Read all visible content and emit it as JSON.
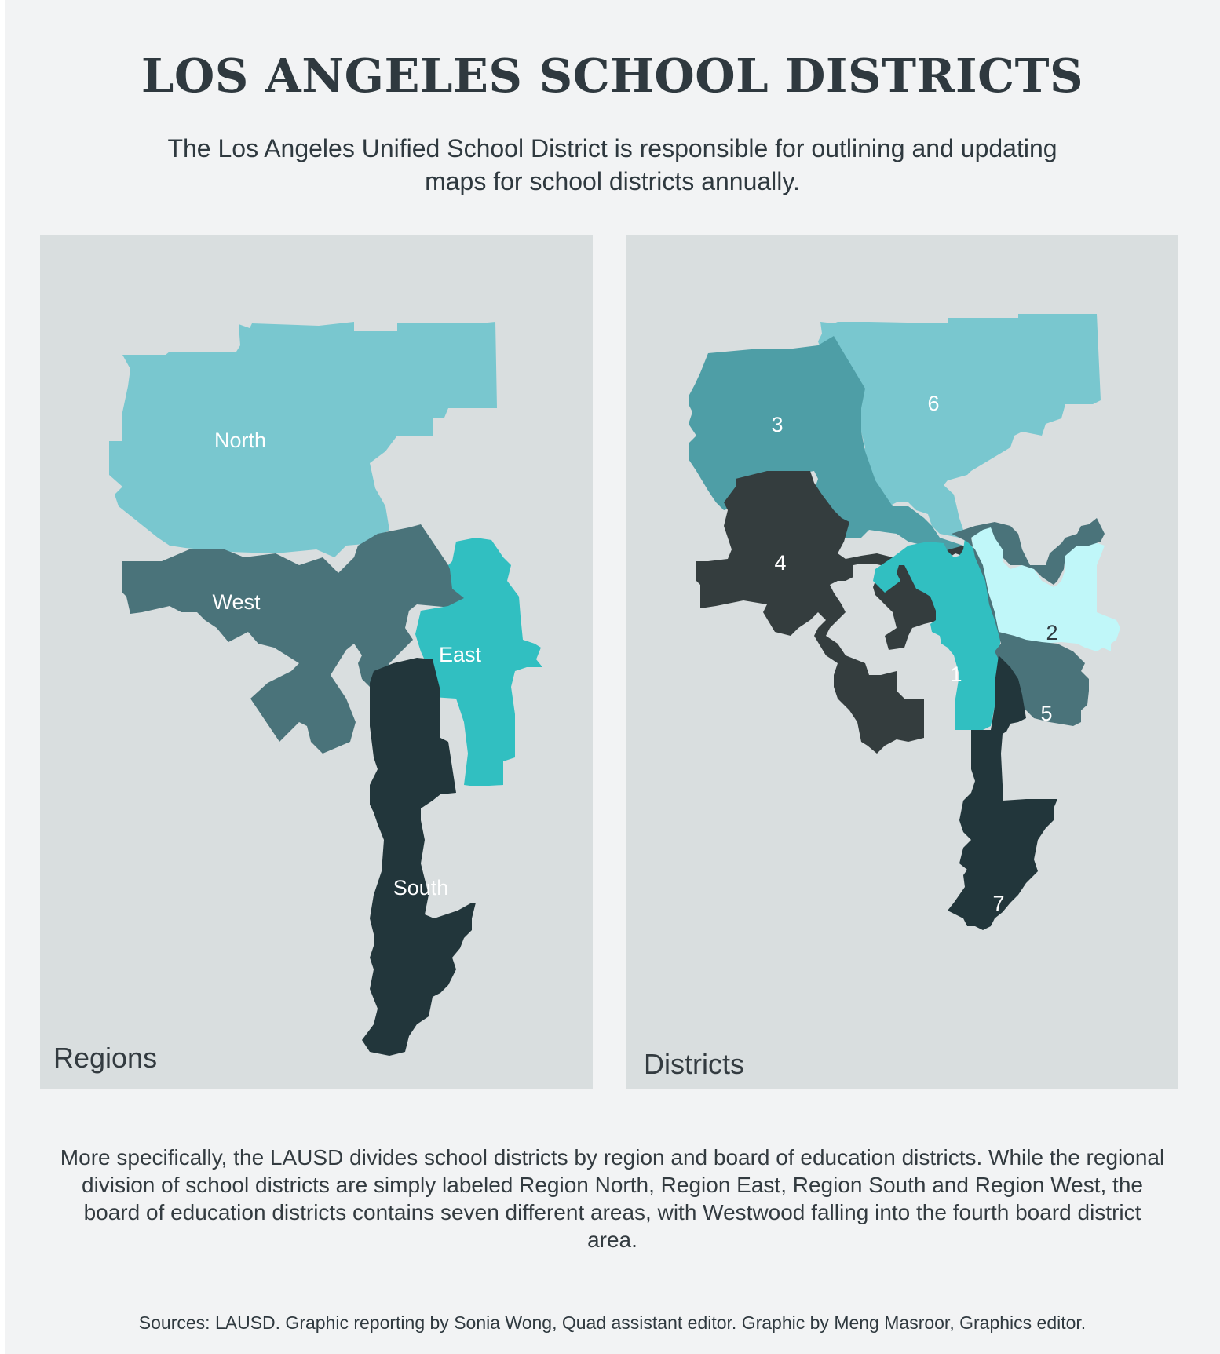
{
  "title": "LOS ANGELES SCHOOL DISTRICTS",
  "subtitle": "The Los Angeles Unified School District is responsible for outlining and updating maps for school districts annually.",
  "regions_map": {
    "label": "Regions",
    "regions": [
      {
        "name": "North",
        "color": "#79c7cf"
      },
      {
        "name": "West",
        "color": "#4a737a"
      },
      {
        "name": "East",
        "color": "#31bfc1"
      },
      {
        "name": "South",
        "color": "#22363b"
      }
    ]
  },
  "districts_map": {
    "label": "Districts",
    "districts": [
      {
        "name": "1",
        "color": "#31bfc1"
      },
      {
        "name": "2",
        "color": "#c0f7f9"
      },
      {
        "name": "3",
        "color": "#4e9ea6"
      },
      {
        "name": "4",
        "color": "#343d3e"
      },
      {
        "name": "5",
        "color": "#4a737a"
      },
      {
        "name": "6",
        "color": "#79c7cf"
      },
      {
        "name": "7",
        "color": "#22363b"
      }
    ]
  },
  "description": "More specifically, the LAUSD divides school districts by region and board of education districts. While the regional division of school districts are simply labeled Region North, Region East, Region South and Region West, the board of education districts contains seven different areas, with Westwood falling into the fourth board district area.",
  "sources": "Sources: LAUSD. Graphic reporting by Sonia Wong, Quad assistant editor. Graphic by Meng Masroor, Graphics editor."
}
